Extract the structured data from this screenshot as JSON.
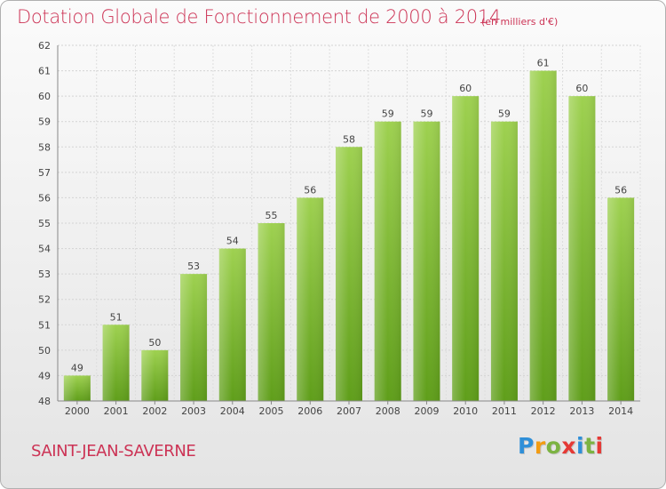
{
  "chart_data": {
    "type": "bar",
    "title": "Dotation Globale de Fonctionnement de 2000 à 2014",
    "subtitle": "(en milliers d'€)",
    "categories": [
      "2000",
      "2001",
      "2002",
      "2003",
      "2004",
      "2005",
      "2006",
      "2007",
      "2008",
      "2009",
      "2010",
      "2011",
      "2012",
      "2013",
      "2014"
    ],
    "values": [
      49,
      51,
      50,
      53,
      54,
      55,
      56,
      58,
      59,
      59,
      60,
      59,
      61,
      60,
      56
    ],
    "ylim": [
      48,
      62
    ],
    "yticks": [
      48,
      49,
      50,
      51,
      52,
      53,
      54,
      55,
      56,
      57,
      58,
      59,
      60,
      61,
      62
    ],
    "xlabel": "",
    "ylabel": "",
    "grid": true,
    "bar_color": "#8cc63f",
    "bar_color_dark": "#5f9e1a"
  },
  "footer": {
    "commune": "SAINT-JEAN-SAVERNE",
    "logo_letters": [
      "P",
      "r",
      "o",
      "x",
      "i",
      "t",
      "i"
    ],
    "logo_colors": [
      "#2f8fd8",
      "#f39c12",
      "#7cb342",
      "#e53935",
      "#2f8fd8",
      "#7cb342",
      "#e53935"
    ]
  }
}
